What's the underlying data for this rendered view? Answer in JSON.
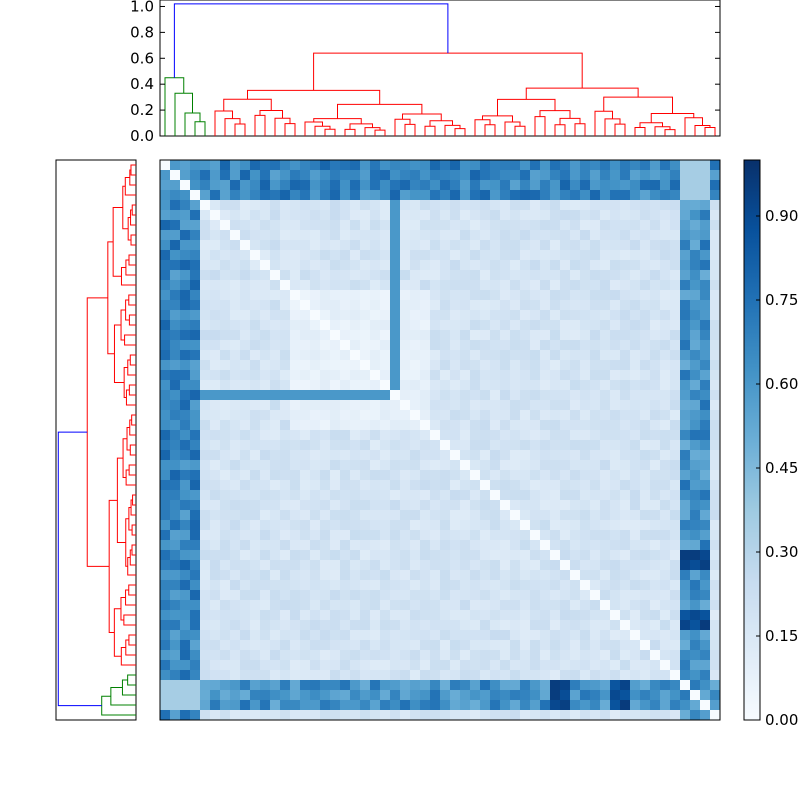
{
  "chart_data": [
    {
      "type": "dendrogram",
      "orientation": "top",
      "ylim": [
        0,
        1.05
      ],
      "yticks": [
        "0.0",
        "0.2",
        "0.4",
        "0.6",
        "0.8",
        "1.0"
      ],
      "leaf_count": 56,
      "link_colors": [
        "#008000",
        "#ff0000",
        "#0000ff"
      ],
      "root_height": 1.02,
      "cluster_heights": {
        "green_group": 0.45,
        "red_group": 0.64
      }
    },
    {
      "type": "dendrogram",
      "orientation": "left",
      "leaf_count": 56,
      "link_colors": [
        "#008000",
        "#ff0000",
        "#0000ff"
      ]
    },
    {
      "type": "heatmap",
      "rows": 56,
      "cols": 56,
      "colormap": "Blues",
      "vmin": 0.0,
      "vmax": 1.0,
      "diagonal_value": 0.0,
      "values_description_groups": {
        "left_band_cols": [
          0,
          1,
          2,
          3
        ],
        "bottom_band_rows": [
          52,
          53,
          54
        ],
        "central_light_block": [
          13,
          26
        ]
      }
    },
    {
      "type": "colorbar",
      "colormap": "Blues",
      "vmin": 0.0,
      "vmax": 1.0,
      "ticks": [
        "0.00",
        "0.15",
        "0.30",
        "0.45",
        "0.60",
        "0.75",
        "0.90"
      ]
    }
  ]
}
